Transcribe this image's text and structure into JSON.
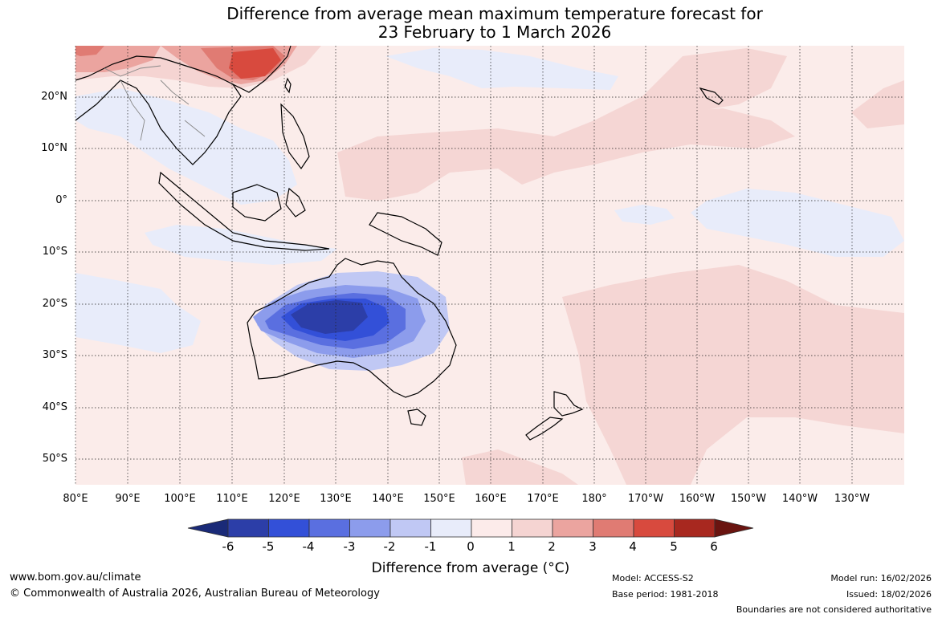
{
  "title": {
    "line1": "Difference from average mean maximum temperature forecast for",
    "line2": "23 February to 1 March 2026"
  },
  "axes": {
    "lat_labels": [
      "20°N",
      "10°N",
      "0°",
      "10°S",
      "20°S",
      "30°S",
      "40°S",
      "50°S"
    ],
    "lon_labels": [
      "80°E",
      "90°E",
      "100°E",
      "110°E",
      "120°E",
      "130°E",
      "140°E",
      "150°E",
      "160°E",
      "170°E",
      "180°",
      "170°W",
      "160°W",
      "150°W",
      "140°W",
      "130°W"
    ]
  },
  "colorbar": {
    "ticks": [
      "-6",
      "-5",
      "-4",
      "-3",
      "-2",
      "-1",
      "0",
      "1",
      "2",
      "3",
      "4",
      "5",
      "6"
    ],
    "colors": [
      "#1a2a78",
      "#2c3ea8",
      "#3350d8",
      "#5a6fe0",
      "#8c9cec",
      "#c0c8f4",
      "#e8ecfa",
      "#fcebea",
      "#f5d4d2",
      "#eba49f",
      "#e07b73",
      "#d84a3e",
      "#a8281f",
      "#6a1410"
    ],
    "title": "Difference from average (°C)"
  },
  "footer": {
    "url": "www.bom.gov.au/climate",
    "copyright": "© Commonwealth of Australia 2026, Australian Bureau of Meteorology",
    "model": "Model: ACCESS-S2",
    "base_period": "Base period: 1981-2018",
    "model_run": "Model run: 16/02/2026",
    "issued": "Issued: 18/02/2026",
    "disclaimer": "Boundaries are not considered authoritative"
  }
}
